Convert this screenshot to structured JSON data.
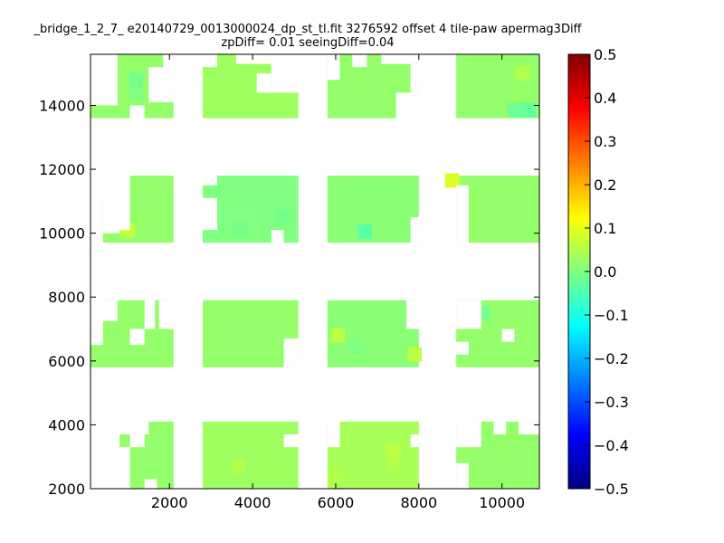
{
  "chart_data": {
    "type": "heatmap",
    "title_line_1": "_bridge_1_2_7_ e20140729_0013000024_dp_st_tl.fit 3276592 offset 4 tile-paw apermag3Diff",
    "title_line_2": "zpDiff= 0.01 seeingDiff=0.04",
    "xlim": [
      100,
      10900
    ],
    "ylim": [
      2000,
      15600
    ],
    "x_ticks": [
      2000,
      4000,
      6000,
      8000,
      10000
    ],
    "y_ticks": [
      2000,
      4000,
      6000,
      8000,
      10000,
      12000,
      14000
    ],
    "colorbar": {
      "range": [
        -0.5,
        0.5
      ],
      "ticks": [
        "0.5",
        "0.4",
        "0.3",
        "0.2",
        "0.1",
        "0.0",
        "−0.1",
        "−0.2",
        "−0.3",
        "−0.4",
        "−0.5"
      ],
      "colormap": "jet"
    },
    "cell_size": [
      340,
      450
    ],
    "base_value": 0.02,
    "blocks": [
      {
        "x0": 100,
        "x1": 2100,
        "y0": 2000,
        "y1": 4100,
        "value": 0.02
      },
      {
        "x0": 2800,
        "x1": 5100,
        "y0": 2000,
        "y1": 4100,
        "value": 0.03
      },
      {
        "x0": 5800,
        "x1": 8000,
        "y0": 2000,
        "y1": 4100,
        "value": 0.04
      },
      {
        "x0": 8900,
        "x1": 10900,
        "y0": 2000,
        "y1": 4100,
        "value": 0.02
      },
      {
        "x0": 100,
        "x1": 2100,
        "y0": 5800,
        "y1": 7900,
        "value": 0.02
      },
      {
        "x0": 2800,
        "x1": 5100,
        "y0": 5800,
        "y1": 7900,
        "value": 0.02
      },
      {
        "x0": 5800,
        "x1": 8000,
        "y0": 5800,
        "y1": 7900,
        "value": 0.01
      },
      {
        "x0": 8900,
        "x1": 10900,
        "y0": 5800,
        "y1": 7900,
        "value": 0.02
      },
      {
        "x0": 100,
        "x1": 2100,
        "y0": 9700,
        "y1": 11800,
        "value": 0.02
      },
      {
        "x0": 2800,
        "x1": 5100,
        "y0": 9700,
        "y1": 11800,
        "value": 0.0
      },
      {
        "x0": 5800,
        "x1": 8000,
        "y0": 9700,
        "y1": 11800,
        "value": 0.01
      },
      {
        "x0": 8900,
        "x1": 10900,
        "y0": 9700,
        "y1": 11800,
        "value": 0.02
      },
      {
        "x0": 100,
        "x1": 2100,
        "y0": 13600,
        "y1": 15600,
        "value": 0.02
      },
      {
        "x0": 2800,
        "x1": 5100,
        "y0": 13600,
        "y1": 15600,
        "value": 0.03
      },
      {
        "x0": 5800,
        "x1": 8000,
        "y0": 13600,
        "y1": 15600,
        "value": 0.02
      },
      {
        "x0": 8900,
        "x1": 10900,
        "y0": 13600,
        "y1": 15600,
        "value": 0.02
      }
    ],
    "holes": [
      {
        "x0": 100,
        "x1": 1500,
        "y0": 3700,
        "y1": 4100
      },
      {
        "x0": 100,
        "x1": 800,
        "y0": 3300,
        "y1": 3700
      },
      {
        "x0": 100,
        "x1": 1050,
        "y0": 2000,
        "y1": 3300
      },
      {
        "x0": 1400,
        "x1": 1700,
        "y0": 2000,
        "y1": 2300
      },
      {
        "x0": 1050,
        "x1": 1400,
        "y0": 3300,
        "y1": 3700
      },
      {
        "x0": 8900,
        "x1": 9500,
        "y0": 3300,
        "y1": 4100
      },
      {
        "x0": 8900,
        "x1": 9200,
        "y0": 2000,
        "y1": 2800
      },
      {
        "x0": 9800,
        "x1": 10100,
        "y0": 3700,
        "y1": 4100
      },
      {
        "x0": 10400,
        "x1": 10900,
        "y0": 3700,
        "y1": 4100
      },
      {
        "x0": 4750,
        "x1": 5100,
        "y0": 3300,
        "y1": 3700
      },
      {
        "x0": 5800,
        "x1": 6100,
        "y0": 3300,
        "y1": 4100
      },
      {
        "x0": 7800,
        "x1": 8000,
        "y0": 3300,
        "y1": 3700
      },
      {
        "x0": 100,
        "x1": 400,
        "y0": 6500,
        "y1": 7900
      },
      {
        "x0": 100,
        "x1": 750,
        "y0": 7250,
        "y1": 7900
      },
      {
        "x0": 1050,
        "x1": 1400,
        "y0": 6500,
        "y1": 7000
      },
      {
        "x0": 1400,
        "x1": 1650,
        "y0": 7000,
        "y1": 7900
      },
      {
        "x0": 1750,
        "x1": 2100,
        "y0": 7000,
        "y1": 7900
      },
      {
        "x0": 4750,
        "x1": 5100,
        "y0": 5800,
        "y1": 6700
      },
      {
        "x0": 7700,
        "x1": 8000,
        "y0": 7000,
        "y1": 7900
      },
      {
        "x0": 8900,
        "x1": 9200,
        "y0": 6200,
        "y1": 6600
      },
      {
        "x0": 8900,
        "x1": 9500,
        "y0": 7000,
        "y1": 7900
      },
      {
        "x0": 10000,
        "x1": 10300,
        "y0": 6600,
        "y1": 7000
      },
      {
        "x0": 100,
        "x1": 400,
        "y0": 9700,
        "y1": 11800
      },
      {
        "x0": 100,
        "x1": 1050,
        "y0": 11000,
        "y1": 11800
      },
      {
        "x0": 400,
        "x1": 1050,
        "y0": 10100,
        "y1": 11800
      },
      {
        "x0": 100,
        "x1": 800,
        "y0": 10000,
        "y1": 10100
      },
      {
        "x0": 2800,
        "x1": 3150,
        "y0": 11500,
        "y1": 11800
      },
      {
        "x0": 2800,
        "x1": 3150,
        "y0": 10100,
        "y1": 11100
      },
      {
        "x0": 4450,
        "x1": 4750,
        "y0": 9700,
        "y1": 10100
      },
      {
        "x0": 8900,
        "x1": 9200,
        "y0": 9700,
        "y1": 11500
      },
      {
        "x0": 7800,
        "x1": 8000,
        "y0": 9700,
        "y1": 10500
      },
      {
        "x0": 100,
        "x1": 750,
        "y0": 14000,
        "y1": 15600
      },
      {
        "x0": 1050,
        "x1": 1400,
        "y0": 13600,
        "y1": 14000
      },
      {
        "x0": 1500,
        "x1": 2100,
        "y0": 14100,
        "y1": 15200
      },
      {
        "x0": 1850,
        "x1": 2100,
        "y0": 15200,
        "y1": 15600
      },
      {
        "x0": 2800,
        "x1": 3150,
        "y0": 15200,
        "y1": 15600
      },
      {
        "x0": 3600,
        "x1": 4450,
        "y0": 15300,
        "y1": 15600
      },
      {
        "x0": 4100,
        "x1": 4450,
        "y0": 14400,
        "y1": 15000
      },
      {
        "x0": 4450,
        "x1": 5100,
        "y0": 14400,
        "y1": 15600
      },
      {
        "x0": 4750,
        "x1": 5100,
        "y0": 15000,
        "y1": 15300
      },
      {
        "x0": 5800,
        "x1": 6100,
        "y0": 14800,
        "y1": 15600
      },
      {
        "x0": 6400,
        "x1": 6750,
        "y0": 15200,
        "y1": 15600
      },
      {
        "x0": 7100,
        "x1": 8000,
        "y0": 15300,
        "y1": 15600
      },
      {
        "x0": 7450,
        "x1": 8000,
        "y0": 13600,
        "y1": 14400
      },
      {
        "x0": 7800,
        "x1": 8000,
        "y0": 14400,
        "y1": 15300
      }
    ],
    "cells": [
      {
        "x": 8800,
        "y": 11650,
        "value": 0.09
      },
      {
        "x": 1000,
        "y": 10100,
        "value": 0.07
      },
      {
        "x": 7900,
        "y": 6200,
        "value": 0.06
      },
      {
        "x": 6050,
        "y": 6800,
        "value": 0.06
      },
      {
        "x": 6700,
        "y": 10050,
        "value": -0.04
      },
      {
        "x": 10650,
        "y": 13850,
        "value": -0.03
      },
      {
        "x": 10300,
        "y": 13850,
        "value": -0.02
      },
      {
        "x": 7400,
        "y": 3200,
        "value": 0.06
      },
      {
        "x": 7400,
        "y": 2700,
        "value": 0.05
      },
      {
        "x": 1200,
        "y": 14400,
        "value": 0.0
      },
      {
        "x": 1200,
        "y": 14800,
        "value": -0.01
      },
      {
        "x": 3650,
        "y": 2700,
        "value": 0.05
      },
      {
        "x": 6000,
        "y": 2400,
        "value": 0.05
      },
      {
        "x": 4700,
        "y": 10500,
        "value": -0.01
      },
      {
        "x": 3700,
        "y": 10200,
        "value": -0.01
      },
      {
        "x": 10500,
        "y": 15000,
        "value": 0.05
      },
      {
        "x": 6500,
        "y": 6400,
        "value": 0.0
      },
      {
        "x": 9550,
        "y": 7500,
        "value": -0.01
      }
    ]
  }
}
